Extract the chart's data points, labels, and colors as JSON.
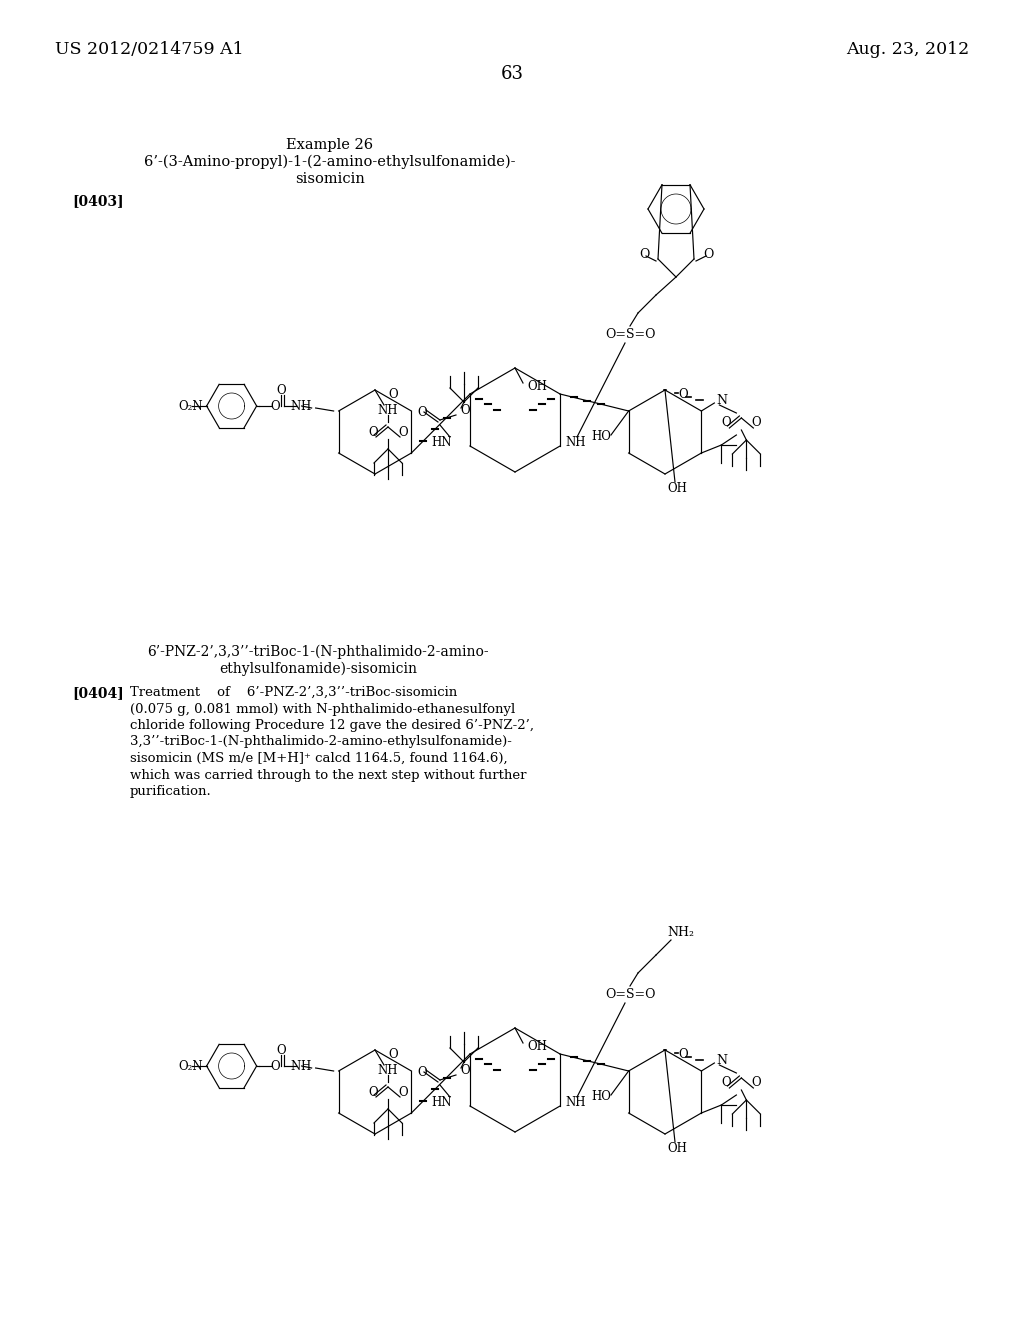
{
  "background_color": "#ffffff",
  "header_left": "US 2012/0214759 A1",
  "header_right": "Aug. 23, 2012",
  "page_number": "63",
  "example_title_line1": "Example 26",
  "example_title_line2": "6’-(3-Amino-propyl)-1-(2-amino-ethylsulfonamide)-",
  "example_title_line3": "sisomicin",
  "paragraph_tag1": "[0403]",
  "compound_name_line1": "6’-PNZ-2’,3,3’’-triBoc-1-(N-phthalimido-2-amino-",
  "compound_name_line2": "ethylsulfonamide)-sisomicin",
  "paragraph_tag2": "[0404]",
  "para2_lines": [
    "Treatment    of    6’-PNZ-2’,3,3’’-triBoc-sisomicin",
    "(0.075 g, 0.081 mmol) with N-phthalimido-ethanesulfonyl",
    "chloride following Procedure 12 gave the desired 6’-PNZ-2’,",
    "3,3’’-triBoc-1-(N-phthalimido-2-amino-ethylsulfonamide)-",
    "sisomicin (MS m/e [M+H]⁺ calcd 1164.5, found 1164.6),",
    "which was carried through to the next step without further",
    "purification."
  ]
}
